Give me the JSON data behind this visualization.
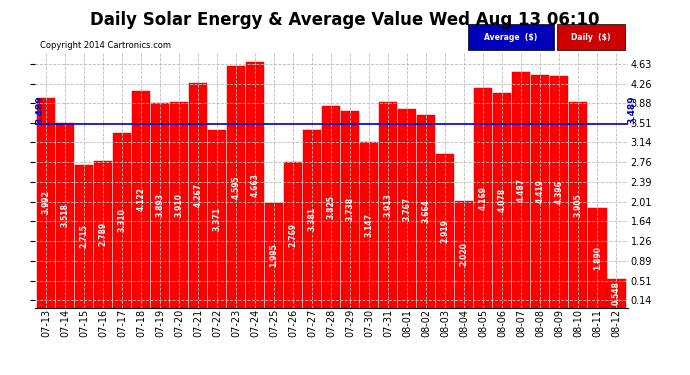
{
  "title": "Daily Solar Energy & Average Value Wed Aug 13 06:10",
  "copyright": "Copyright 2014 Cartronics.com",
  "categories": [
    "07-13",
    "07-14",
    "07-15",
    "07-16",
    "07-17",
    "07-18",
    "07-19",
    "07-20",
    "07-21",
    "07-22",
    "07-23",
    "07-24",
    "07-25",
    "07-26",
    "07-27",
    "07-28",
    "07-29",
    "07-30",
    "07-31",
    "08-01",
    "08-02",
    "08-03",
    "08-04",
    "08-05",
    "08-06",
    "08-07",
    "08-08",
    "08-09",
    "08-10",
    "08-11",
    "08-12"
  ],
  "values": [
    3.992,
    3.518,
    2.715,
    2.789,
    3.31,
    4.122,
    3.893,
    3.91,
    4.267,
    3.371,
    4.595,
    4.663,
    1.995,
    2.769,
    3.381,
    3.825,
    3.738,
    3.147,
    3.913,
    3.767,
    3.664,
    2.919,
    2.02,
    4.169,
    4.078,
    4.487,
    4.419,
    4.396,
    3.905,
    1.89,
    0.548
  ],
  "average_value": 3.489,
  "bar_color": "#ff0000",
  "average_line_color": "#0000cc",
  "average_label": "Average  ($)",
  "daily_label": "Daily  ($)",
  "legend_avg_bg": "#0000bb",
  "legend_daily_bg": "#cc0000",
  "yticks": [
    0.14,
    0.51,
    0.89,
    1.26,
    1.64,
    2.01,
    2.39,
    2.76,
    3.14,
    3.51,
    3.88,
    4.26,
    4.63
  ],
  "ylim_min": 0.0,
  "ylim_max": 4.85,
  "background_color": "#ffffff",
  "grid_color": "#bbbbbb",
  "title_fontsize": 12,
  "tick_fontsize": 7,
  "bar_label_fontsize": 5.5,
  "avg_right_label": "3.489"
}
